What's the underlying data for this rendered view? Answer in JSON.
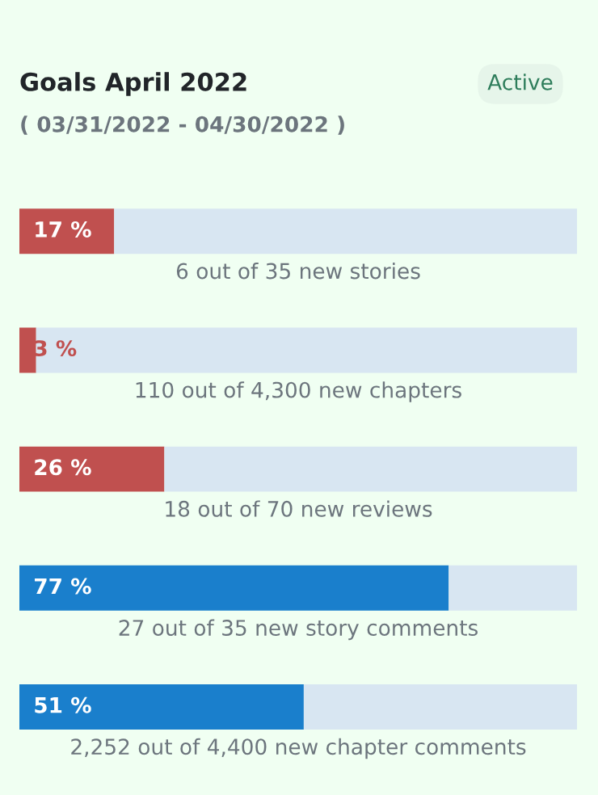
{
  "chart_data": {
    "type": "bar",
    "orientation": "horizontal",
    "stacked": true,
    "title": "Goals April 2022",
    "subtitle": "( 03/31/2022 - 04/30/2022 )",
    "annotations": [
      "Active"
    ],
    "categories": [
      "6 out of 35 new stories",
      "110 out of 4,300 new chapters",
      "18 out of 70 new reviews",
      "27 out of 35 new story comments",
      "2,252 out of 4,400 new chapter comments"
    ],
    "series": [
      {
        "colors": [
          "#c0504f",
          "#c0504f",
          "#c0504f",
          "#1a7fcc",
          "#1a7fcc"
        ],
        "values": [
          17,
          3,
          26,
          77,
          51
        ],
        "value_labels": [
          "17 %",
          "3 %",
          "26 %",
          "77 %",
          "51 %"
        ]
      },
      {
        "color": "#d8e6f2",
        "values": [
          83,
          97,
          74,
          23,
          49
        ]
      }
    ],
    "xlim": [
      0,
      100
    ],
    "tick_labels": false,
    "legend": false
  }
}
